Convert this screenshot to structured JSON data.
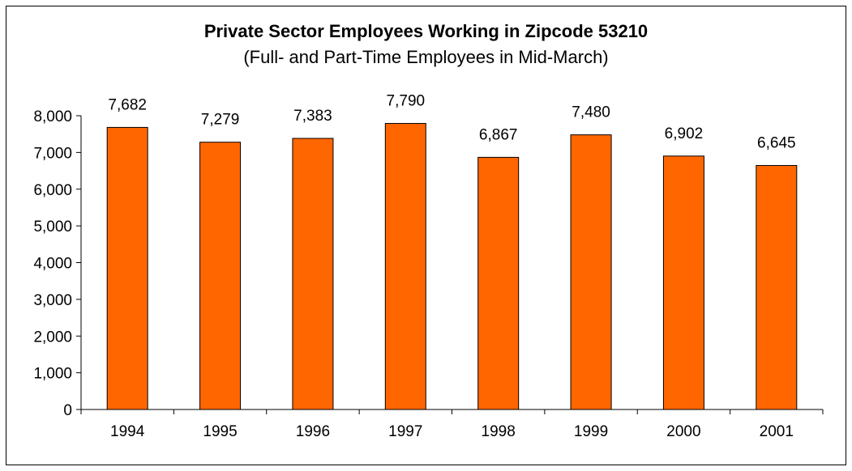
{
  "chart_data": {
    "type": "bar",
    "title": "Private Sector Employees Working in Zipcode 53210",
    "subtitle": "(Full- and Part-Time Employees in Mid-March)",
    "categories": [
      "1994",
      "1995",
      "1996",
      "1997",
      "1998",
      "1999",
      "2000",
      "2001"
    ],
    "values": [
      7682,
      7279,
      7383,
      7790,
      6867,
      7480,
      6902,
      6645
    ],
    "value_labels": [
      "7,682",
      "7,279",
      "7,383",
      "7,790",
      "6,867",
      "7,480",
      "6,902",
      "6,645"
    ],
    "yticks": [
      "0",
      "1,000",
      "2,000",
      "3,000",
      "4,000",
      "5,000",
      "6,000",
      "7,000",
      "8,000"
    ],
    "ylim": [
      0,
      8000
    ],
    "xlabel": "",
    "ylabel": "",
    "grid": false,
    "legend": "none",
    "bar_color": "#FF6600",
    "bar_edge_color": "#000000"
  }
}
